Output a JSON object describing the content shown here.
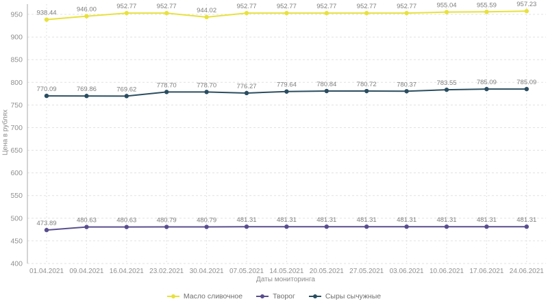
{
  "chart_data": {
    "type": "line",
    "title": "",
    "xlabel": "Даты мониторинга",
    "ylabel": "Цена в рублях",
    "ylim": [
      400,
      950
    ],
    "ytick_step": 50,
    "grid": true,
    "legend_position": "bottom",
    "categories": [
      "01.04.2021",
      "09.04.2021",
      "16.04.2021",
      "23.02.2021",
      "30.04.2021",
      "07.05.2021",
      "14.05.2021",
      "20.05.2021",
      "27.05.2021",
      "03.06.2021",
      "10.06.2021",
      "17.06.2021",
      "24.06.2021"
    ],
    "series": [
      {
        "name": "Масло сливочное",
        "color": "#e8e13c",
        "values": [
          938.44,
          946.0,
          952.77,
          952.77,
          944.02,
          952.77,
          952.77,
          952.77,
          952.77,
          952.77,
          955.04,
          955.59,
          957.23
        ]
      },
      {
        "name": "Творог",
        "color": "#5a4e8e",
        "values": [
          473.89,
          480.63,
          480.63,
          480.79,
          480.79,
          481.31,
          481.31,
          481.31,
          481.31,
          481.31,
          481.31,
          481.31,
          481.31
        ]
      },
      {
        "name": "Сыры сычужные",
        "color": "#2a4d60",
        "values": [
          770.09,
          769.86,
          769.62,
          778.7,
          778.7,
          776.27,
          779.64,
          780.84,
          780.72,
          780.37,
          783.55,
          785.09,
          785.09
        ]
      }
    ]
  },
  "colors": {
    "grid": "#e1e1e1",
    "axis": "#b8b8b8",
    "tick_label": "#8f8f8f",
    "data_label": "#7d7d7d"
  }
}
